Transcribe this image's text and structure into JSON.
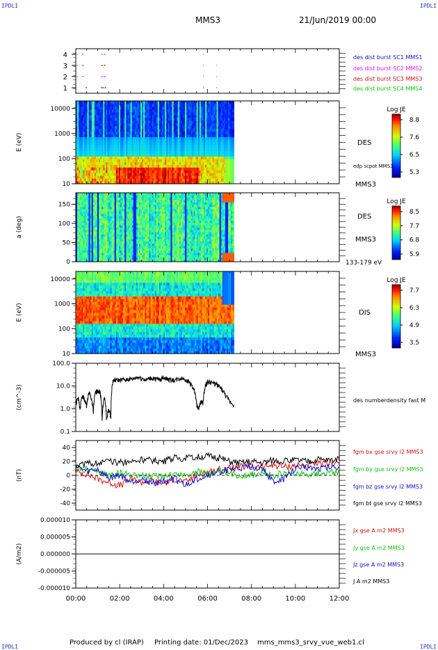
{
  "header": {
    "corner_left": "IPDLI",
    "corner_right": "IPDLI",
    "corner_bottom_left": "IPDLI",
    "corner_bottom_right": "IPDLI",
    "spacecraft": "MMS3",
    "datetime": "21/Jun/2019 00:00"
  },
  "footer": {
    "produced_by": "Produced by cl (IRAP)",
    "printing_date": "Printing date: 01/Dec/2023",
    "filename": "mms_mms3_srvy_vue_web1.cl"
  },
  "colors": {
    "red": "#d01010",
    "green": "#10c010",
    "blue": "#1010d0",
    "magenta": "#e010e0",
    "black": "#000000"
  },
  "chart_data": [
    {
      "id": "burst",
      "type": "scatter",
      "ylim": [
        0.5,
        4.5
      ],
      "yticks": [
        1,
        2,
        3,
        4
      ],
      "series": [
        {
          "name": "des dist burst SC1 MMS1",
          "y": 1,
          "color": "#1010d0",
          "segments": [
            [
              0.45,
              0.5
            ],
            [
              1.15,
              1.2
            ],
            [
              1.22,
              1.27
            ],
            [
              1.32,
              1.38
            ],
            [
              5.8,
              5.82
            ],
            [
              6.4,
              6.42
            ]
          ]
        },
        {
          "name": "des dist burst SC2 MMS2",
          "y": 2,
          "color": "#e010e0",
          "segments": [
            [
              0.05,
              0.08
            ],
            [
              0.3,
              0.35
            ],
            [
              1.17,
              1.23
            ],
            [
              1.28,
              1.35
            ],
            [
              5.8,
              5.82
            ],
            [
              6.4,
              6.42
            ]
          ]
        },
        {
          "name": "des dist burst SC3 MMS3",
          "y": 3,
          "color": "#d01010",
          "segments": [
            [
              0.05,
              0.08
            ],
            [
              0.3,
              0.35
            ],
            [
              1.17,
              1.23
            ],
            [
              1.28,
              1.35
            ],
            [
              5.8,
              5.82
            ],
            [
              6.4,
              6.42
            ]
          ]
        },
        {
          "name": "des dist burst SC4 MMS4",
          "y": 4,
          "color": "#10c010",
          "segments": [
            [
              0.05,
              0.08
            ],
            [
              0.3,
              0.35
            ],
            [
              1.17,
              1.23
            ],
            [
              1.28,
              1.35
            ],
            [
              5.8,
              5.82
            ]
          ]
        }
      ]
    },
    {
      "id": "des_energy",
      "type": "heatmap",
      "ylabel": "E (eV)",
      "yscale": "log",
      "ylim": [
        10,
        20000
      ],
      "ytick_values": [
        10,
        100,
        1000,
        10000
      ],
      "ytick_labels": [
        "10",
        "100",
        "1000",
        "10000"
      ],
      "data_end_hour": 7.2,
      "colorbar": {
        "title": "Log JE",
        "tick_labels": [
          "8.8",
          "7.6",
          "6.5",
          "5.3"
        ]
      },
      "right_labels": [
        "DES",
        "edp scpot MMS3",
        "MMS3"
      ]
    },
    {
      "id": "des_pitch",
      "type": "heatmap",
      "ylabel": "a (deg)",
      "ylim": [
        0,
        180
      ],
      "ytick_values": [
        0,
        50,
        100,
        150
      ],
      "ytick_labels": [
        "0",
        "50",
        "100",
        "150"
      ],
      "data_end_hour": 7.2,
      "colorbar": {
        "title": "Log JE",
        "tick_labels": [
          "8.5",
          "7.7",
          "6.8",
          "5.9"
        ]
      },
      "right_labels": [
        "DES",
        "MMS3",
        "133-179 eV"
      ]
    },
    {
      "id": "dis_energy",
      "type": "heatmap",
      "ylabel": "E (eV)",
      "yscale": "log",
      "ylim": [
        10,
        20000
      ],
      "ytick_values": [
        10,
        100,
        1000,
        10000
      ],
      "ytick_labels": [
        "10",
        "100",
        "1000",
        "10000"
      ],
      "data_end_hour": 7.2,
      "colorbar": {
        "title": "Log JE",
        "tick_labels": [
          "7.7",
          "6.3",
          "4.9",
          "3.5"
        ]
      },
      "right_labels": [
        "DIS",
        "MMS3"
      ]
    },
    {
      "id": "density",
      "type": "line",
      "ylabel": "(cm^-3)",
      "yscale": "log",
      "ylim": [
        0.1,
        100
      ],
      "ytick_values": [
        0.1,
        1,
        10,
        100
      ],
      "ytick_labels": [
        "0.1",
        "1.0",
        "10.0",
        "100.0"
      ],
      "series": [
        {
          "name": "des numberdensity fast M",
          "color": "#000000",
          "x": [
            0.0,
            0.1,
            0.2,
            0.3,
            0.4,
            0.5,
            0.6,
            0.7,
            0.8,
            0.9,
            1.0,
            1.1,
            1.2,
            1.3,
            1.4,
            1.5,
            1.6,
            1.7,
            1.8,
            2.0,
            2.2,
            2.4,
            2.6,
            2.8,
            3.0,
            3.2,
            3.4,
            3.6,
            3.8,
            4.0,
            4.2,
            4.4,
            4.6,
            4.8,
            5.0,
            5.2,
            5.4,
            5.5,
            5.6,
            5.7,
            5.8,
            5.9,
            6.0,
            6.2,
            6.4,
            6.6,
            6.8,
            7.0,
            7.2
          ],
          "y": [
            1.5,
            3.0,
            0.8,
            4.0,
            2.5,
            1.2,
            5.0,
            3.0,
            0.6,
            5.0,
            6.5,
            5.5,
            0.25,
            3.0,
            0.3,
            0.9,
            0.4,
            17,
            18,
            18,
            19,
            20,
            20,
            24,
            22,
            18,
            22,
            21,
            19,
            24,
            20,
            18,
            19,
            22,
            20,
            14,
            6,
            1.5,
            0.9,
            2.0,
            1.8,
            10,
            15,
            14,
            12,
            8,
            4,
            2,
            1.5
          ]
        }
      ]
    },
    {
      "id": "fgm",
      "type": "line",
      "ylabel": "(nT)",
      "ylim": [
        -50,
        50
      ],
      "ytick_values": [
        -40,
        -20,
        0,
        20,
        40
      ],
      "ytick_labels": [
        "-40",
        "-20",
        "0",
        "20",
        "40"
      ],
      "series": [
        {
          "name": "fgm bx gse srvy l2 MMS3",
          "color": "#d01010",
          "x": [
            0,
            0.5,
            1,
            1.5,
            2,
            2.5,
            3,
            3.5,
            4,
            4.5,
            5,
            5.5,
            6,
            6.5,
            7,
            7.5,
            8,
            8.5,
            9,
            9.5,
            10,
            10.5,
            11,
            11.5,
            12
          ],
          "y": [
            5,
            2,
            -5,
            -10,
            -15,
            -5,
            -10,
            -8,
            -12,
            -5,
            -10,
            0,
            5,
            8,
            10,
            12,
            13,
            12,
            15,
            12,
            14,
            15,
            16,
            17,
            18
          ]
        },
        {
          "name": "fgm by gse srvy l2 MMS3",
          "color": "#10c010",
          "x": [
            0,
            0.5,
            1,
            1.5,
            2,
            2.5,
            3,
            3.5,
            4,
            4.5,
            5,
            5.5,
            6,
            6.5,
            7,
            7.5,
            8,
            8.5,
            9,
            9.5,
            10,
            10.5,
            11,
            11.5,
            12
          ],
          "y": [
            10,
            8,
            5,
            0,
            3,
            2,
            0,
            -2,
            0,
            2,
            0,
            5,
            3,
            5,
            2,
            0,
            1,
            2,
            0,
            2,
            3,
            2,
            3,
            4,
            5
          ]
        },
        {
          "name": "fgm bz gse srvy l2 MMS3",
          "color": "#1010d0",
          "x": [
            0,
            0.5,
            1,
            1.5,
            2,
            2.5,
            3,
            3.5,
            4,
            4.5,
            5,
            5.5,
            6,
            6.5,
            7,
            7.5,
            8,
            8.5,
            9,
            9.5,
            10,
            10.5,
            11,
            11.5,
            12
          ],
          "y": [
            12,
            5,
            8,
            -5,
            0,
            -10,
            -5,
            -12,
            -8,
            -5,
            -15,
            -5,
            0,
            5,
            8,
            10,
            12,
            10,
            -10,
            -5,
            10,
            12,
            10,
            12,
            12
          ]
        },
        {
          "name": "fgm bt gse srvy l2 MMS3",
          "color": "#000000",
          "x": [
            0,
            0.5,
            1,
            1.5,
            2,
            2.5,
            3,
            3.5,
            4,
            4.5,
            5,
            5.5,
            6,
            6.5,
            7,
            7.5,
            8,
            8.5,
            9,
            9.5,
            10,
            10.5,
            11,
            11.5,
            12
          ],
          "y": [
            15,
            16,
            18,
            20,
            18,
            20,
            22,
            22,
            20,
            25,
            24,
            26,
            28,
            25,
            20,
            18,
            20,
            18,
            22,
            20,
            22,
            20,
            22,
            22,
            22
          ]
        }
      ]
    },
    {
      "id": "current",
      "type": "line",
      "ylabel": "(A/m2)",
      "ylim": [
        -1e-05,
        1e-05
      ],
      "ytick_values": [
        -1e-05,
        -5e-06,
        0,
        5e-06,
        1e-05
      ],
      "ytick_labels": [
        "-0.000010",
        "-0.000005",
        "0.000000",
        "0.000005",
        "0.000010"
      ],
      "x_tick_labels": [
        "00:00",
        "02:00",
        "04:00",
        "06:00",
        "08:00",
        "10:00",
        "12:00"
      ],
      "xlim": [
        0,
        12
      ],
      "series": [
        {
          "name": "Jx gse A m2 MMS3",
          "color": "#d01010",
          "x": [
            0,
            12
          ],
          "y": [
            0,
            0
          ]
        },
        {
          "name": "Jy gse A m2 MMS3",
          "color": "#10c010",
          "x": [
            0,
            12
          ],
          "y": [
            0,
            0
          ]
        },
        {
          "name": "Jz gse A m2 MMS3",
          "color": "#1010d0",
          "x": [
            0,
            12
          ],
          "y": [
            0,
            0
          ]
        },
        {
          "name": "J A m2 MMS3",
          "color": "#000000",
          "x": [
            0,
            12
          ],
          "y": [
            0,
            0
          ]
        }
      ]
    }
  ]
}
